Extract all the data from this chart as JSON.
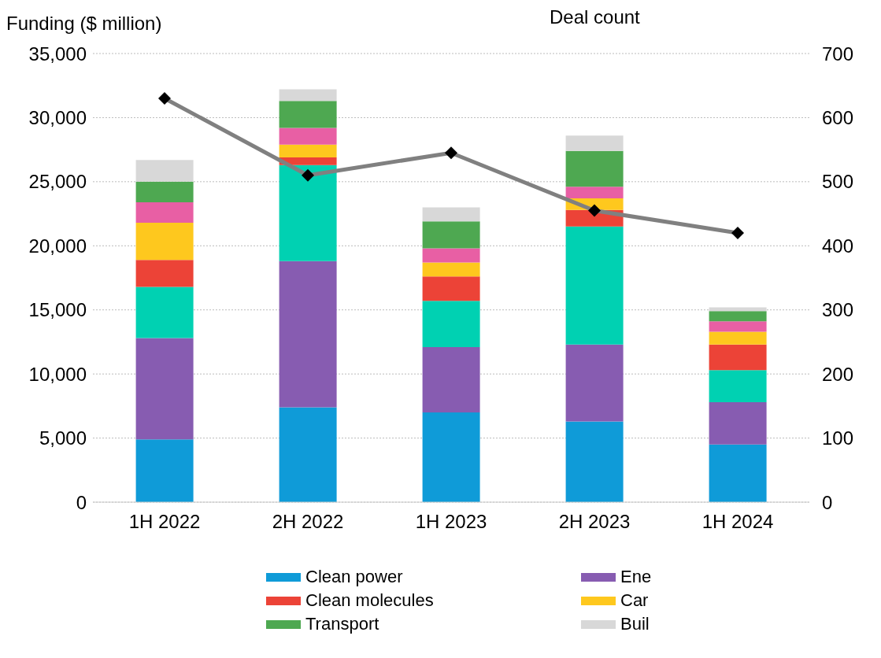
{
  "chart_data": {
    "type": "bar",
    "stacked": true,
    "ylabel": "Funding ($ million)",
    "y2label": "Deal count",
    "categories": [
      "1H 2022",
      "2H 2022",
      "1H 2023",
      "2H 2023",
      "1H 2024"
    ],
    "series": [
      {
        "name": "Clean power",
        "color": "#0f9bd8",
        "values": [
          4900,
          7400,
          7000,
          6300,
          4500
        ]
      },
      {
        "name": "Ene",
        "color": "#875cb1",
        "values": [
          7900,
          11400,
          5100,
          6000,
          3300
        ]
      },
      {
        "color": "#00d1b2",
        "values": [
          4000,
          7500,
          3600,
          9200,
          2500
        ]
      },
      {
        "name": "Clean molecules",
        "color": "#ec4337",
        "values": [
          2100,
          600,
          1900,
          1300,
          2000
        ]
      },
      {
        "name": "Car",
        "color": "#fec81e",
        "values": [
          2900,
          1000,
          1100,
          900,
          1000
        ]
      },
      {
        "color": "#e85fa4",
        "values": [
          1600,
          1300,
          1100,
          900,
          800
        ]
      },
      {
        "name": "Transport",
        "color": "#4ea851",
        "values": [
          1600,
          2100,
          2100,
          2800,
          800
        ]
      },
      {
        "name": "Buil",
        "color": "#d8d8d8",
        "values": [
          1700,
          900,
          1100,
          1200,
          300
        ]
      },
      {
        "type": "line",
        "axis": "y2",
        "color": "#808080",
        "marker": "diamond",
        "line_style": "solid",
        "values": [
          630,
          510,
          545,
          455,
          420
        ]
      }
    ],
    "ylim": [
      0,
      35000
    ],
    "yticks": [
      0,
      {
        "value": 5000,
        "label": "5,000"
      },
      {
        "value": 10000,
        "label": "10,000"
      },
      {
        "value": 15000,
        "label": "15,000"
      },
      {
        "value": 20000,
        "label": "20,000"
      },
      {
        "value": 25000,
        "label": "25,000"
      },
      {
        "value": 30000,
        "label": "30,000"
      },
      {
        "value": 35000,
        "label": "35,000"
      }
    ],
    "y2lim": [
      0,
      700
    ],
    "y2ticks": [
      0,
      100,
      200,
      300,
      400,
      500,
      600,
      700
    ],
    "grid": "y",
    "legend": "bottom"
  }
}
